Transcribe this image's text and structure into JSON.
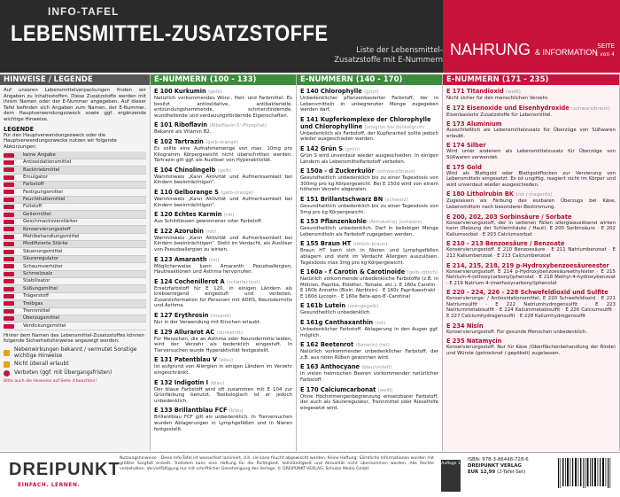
{
  "header": {
    "kicker": "INFO-TAFEL",
    "title": "LEBENSMITTEL-ZUSATZSTOFFE",
    "subtitle": "Liste der Lebensmittel-Zusatzstoffe mit E-Nummern",
    "series_title": "NAHRUNG",
    "series_suffix": "& INFORMATION",
    "page": "SEITE",
    "page_of": "1 von 4"
  },
  "legend_column": {
    "heading": "HINWEISE / LEGENDE",
    "intro": "Auf unseren Lebensmittelverpackungen finden wir Angaben zu Inhaltsstoffen. Diese Zusatzstoffe werden mit ihrem Namen oder der E-Nummer angegeben. Auf dieser Tafel befinden sich Angaben zum Namen, der E-Nummer, dem Hauptverwendungszweck sowie ggf. ergänzende wichtige Hinweise.",
    "legend_title": "LEGENDE",
    "legend_intro": "Für den Hauptverwendungszweck oder die Hauptverwendungszwecke nutzen wir folgende Abkürzungen:",
    "items": [
      "keine Angabe",
      "Antioxidationsmittel",
      "Backtriebmittel",
      "Emulgator",
      "Farbstoff",
      "Festigungsmittel",
      "Feuchthaltemittel",
      "Füllstoff",
      "Geliermittel",
      "Geschmacksverstärker",
      "Konservierungsstoff",
      "Mehlbehandlungsmittel",
      "Modifizierte Stärke",
      "Säuerungsmittel",
      "Säureregulator",
      "Schaumverhüter",
      "Schmelzsalz",
      "Stabilisator",
      "Süßungsmittel",
      "Trägerstoff",
      "Treibgas",
      "Trennmittel",
      "Überzugsmittel",
      "Verdickungsmittel"
    ],
    "outro": "Hinter dem Namen des Lebensmittel-Zusatzstoffes können folgende Sicherheitshinweise angezeigt werden:",
    "warnings": [
      "Nebenwirkungen bekannt / vermutet Sonstige wichtige Hinweise",
      "Nicht überall erlaubt",
      "Verboten (ggf. mit Übergangsfristen)"
    ],
    "footnote": "Bitte auch die Hinweise auf Seite 4 beachten!"
  },
  "columns": [
    {
      "heading": "E-NUMMERN (100 - 133)",
      "entries": [
        {
          "code": "E 100",
          "name": "Kurkumin",
          "tag": "(gelb)",
          "text": "Natürlich vorkommendes Würz-, Heil- und Farbmittel. Es besitzt antioxidative, antibakterielle, entzündungshemmende, schmerzlindernde, wundheilende und verdauungsfördernde Eigenschaften."
        },
        {
          "code": "E 101",
          "name": "Riboflavin",
          "tag": "(Riboflavin-5'-Phosphat)",
          "text": "Bekannt als Vitamin B2."
        },
        {
          "code": "E 102",
          "name": "Tartrazin",
          "tag": "(gelb-orange)",
          "text": "Es sollte eine Aufnahmemenge von max. 10mg pro Kilogramm Körpergewicht nicht überschritten werden. Tartrazin gilt ggf. als Auslöser von Hyperaktivität."
        },
        {
          "code": "E 104",
          "name": "Chinolingelb",
          "tag": "(gelb)",
          "text": "Warnhinweis „Kann Aktivität und Aufmerksamkeit bei Kindern beeinträchtigen\"."
        },
        {
          "code": "E 110",
          "name": "Gelborange S",
          "tag": "(gelb-orange)",
          "text": "Warnhinweis „Kann Aktivität und Aufmerksamkeit bei Kindern beeinträchtigen\"."
        },
        {
          "code": "E 120",
          "name": "Echtes Karmin",
          "tag": "(rot)",
          "text": "Aus Schildläusen gewonnener roter Farbstoff."
        },
        {
          "code": "E 122",
          "name": "Azorubin",
          "tag": "(rot)",
          "text": "Warnhinweis „Kann Aktivität und Aufmerksamkeit bei Kindern beeinträchtigen\". Steht im Verdacht, als Auslöser von Pseudoallergien zu wirken."
        },
        {
          "code": "E 123",
          "name": "Amaranth",
          "tag": "(rot)",
          "text": "Möglicherweise kann Amaranth Pseudoallergien, Hautreaktionen und Asthma hervorrufen."
        },
        {
          "code": "E 124",
          "name": "Cochenillerot A",
          "tag": "(scharlachrot)",
          "text": "Ersatzfarbstoff für E 120, in einigen Ländern als krebserregend eingestuft und verboten. Zusatzinformation für Personen mit ADHS, Neurodermitis und Asthma."
        },
        {
          "code": "E 127",
          "name": "Erythrosin",
          "tag": "(rosarot)",
          "text": "Nur in der Verwendung mit Kirschen erlaubt."
        },
        {
          "code": "E 129",
          "name": "Allurarot AC",
          "tag": "(dunkelrot)",
          "text": "Für Menschen, die an Asthma oder Neurodermitis leiden, wird der Verzehr als bedenklich eingestuft. In Tierversuchen wurde Hyperaktivität festgestellt."
        },
        {
          "code": "E 131",
          "name": "Patentblau V",
          "tag": "(blau)",
          "text": "Ist aufgrund von Allergien in einigen Ländern im Verzehr eingeschränkt."
        },
        {
          "code": "E 132",
          "name": "Indigotin I",
          "tag": "(blau)",
          "text": "Der blaue Farbstoff wird oft zusammen mit E 104 zur Grünfärbung benutzt. Toxikologisch ist er jedoch unbedenklich."
        },
        {
          "code": "E 133",
          "name": "Brillantblau FCF",
          "tag": "(blau)",
          "text": "Brillantblau FCF gilt als unbedenklich. In Tierversuchen wurden Ablagerungen in Lymphgefäßen und in Nieren festgestellt."
        }
      ]
    },
    {
      "heading": "E-NUMMERN (140 - 170)",
      "entries": [
        {
          "code": "E 140",
          "name": "Chlorophylle",
          "tag": "(grün)",
          "text": "Unbedenklicher pflanzenbasierter Farbstoff, der in Lebensmitteln in unbegrenzter Menge zugegeben werden darf."
        },
        {
          "code": "E 141",
          "name": "Kupferkomplexe der Chlorophylle und Chlorophylline",
          "tag": "(olivgrün bis dunkelgrün)",
          "text": "Unbedenklich als Farbstoff, der Kupferanteil sollte jedoch wieder ausgeschieden werden."
        },
        {
          "code": "E 142",
          "name": "Grün S",
          "tag": "(grün)",
          "text": "Grün S wird unverdaut wieder ausgeschieden. In einigen Ländern als Lebensmittelfarbstoff verboten."
        },
        {
          "code": "E 150a - d",
          "name": "Zuckerkulör",
          "tag": "(schwarz/braun)",
          "text": "Gesundheitlich unbedenklich bis zu einer Tagesdosis von 300mg pro kg Körpergewicht. Bei E 150d wird von einem höheren Verzehr abgeraten."
        },
        {
          "code": "E 151",
          "name": "Brillantschwarz BN",
          "tag": "(schwarz)",
          "text": "Gesundheitlich unbedenklich bis zu einer Tagesdosis von 5mg pro kg Körpergewicht."
        },
        {
          "code": "E 153",
          "name": "Pflanzenkohle",
          "tag": "(Aktivkohle) (schwarz)",
          "text": "Gesundheitlich unbedenklich. Darf in beliebiger Menge Lebensmitteln als Farbstoff zugegeben werden."
        },
        {
          "code": "E 155",
          "name": "Braun HT",
          "tag": "(rötlich-braun)",
          "text": "Braun HT kann sich in Nieren und Lymphgefäßen ablagern und steht im Verdacht Allergien auszulösen. Tagesdosis max 3mg pro kg Körpergewicht."
        },
        {
          "code": "E 160a - f",
          "name": "Carotin & Carotinoide",
          "tag": "(gelb-rötlich)",
          "text": "Natürlich vorkommende unbedenkliche Farbstoffe (z.B. in Möhren, Paprika, Eidotter, Tomate, etc.). E 160a Carotin · E 160b Annatto (Bixin, Norbixin) · E 160c Paprikaextrakt · E 160d Lycopin · E 160e Beta-apo-8'-Carotinal"
        },
        {
          "code": "E 161b",
          "name": "Lutein",
          "tag": "(orangegelb)",
          "text": "Gesundheitlich unbedenklich."
        },
        {
          "code": "E 161g",
          "name": "Canthaxanthin",
          "tag": "(rot)",
          "text": "Unbedenklicher Farbstoff. Ablagerung in den Augen ggf. möglich."
        },
        {
          "code": "E 162",
          "name": "Beetenrot",
          "tag": "(Betanin) (rot)",
          "text": "Natürlich vorkommender unbedenklicher Farbstoff, der z.B. aus roten Rüben gewonnen wird."
        },
        {
          "code": "E 163",
          "name": "Anthocyane",
          "tag": "(blau/violett)",
          "text": "In vielen heimischen Beeren vorkommender natürlicher Farbstoff."
        },
        {
          "code": "E 170",
          "name": "Calciumcarbonat",
          "tag": "(weiß)",
          "text": "Ohne Höchstmengenbegrenzung einsetzbarer Farbstoff, der auch als Säureregulator, Trennmittel oder Rieselhilfe eingesetzt wird."
        }
      ]
    },
    {
      "heading": "E-NUMMERN (171 - 235)",
      "entries": [
        {
          "code": "E 171",
          "name": "Titandioxid",
          "tag": "(weiß)",
          "text": "Nicht sicher für den menschlichen Verzehr."
        },
        {
          "code": "E 172",
          "name": "Eisenoxide und Eisenhydroxide",
          "tag": "(schwarz/braun)",
          "text": "Eisenbasierte Zusatzstoffe für Lebensmittel."
        },
        {
          "code": "E 173",
          "name": "Aluminium",
          "tag": "",
          "text": "Ausschließlich als Lebensmittelzusatz für Überzüge von Süßwaren erlaubt."
        },
        {
          "code": "E 174",
          "name": "Silber",
          "tag": "",
          "text": "Wird unter anderem als Lebensmittelzusatz für Überzüge von Süßwaren verwendet."
        },
        {
          "code": "E 175",
          "name": "Gold",
          "tag": "",
          "text": "Wird als Blattgold oder Blattgoldflocken zur Verzierung von Lebensmitteln eingesetzt. Es ist ungiftig, reagiert nicht im Körper und wird unverdaut wieder ausgeschieden."
        },
        {
          "code": "E 180",
          "name": "Litholrubin BK",
          "tag": "(rot / magenta)",
          "text": "Zugelassen als Färbung des essbaren Überzugs bei Käse, Lebensmitteln nach besonderer Bestimmung."
        },
        {
          "code": "E 200, 202, 203",
          "name": "Sorbinsäure / Sorbate",
          "tag": "",
          "text": "Konservierungsstoff, der in seltenen Fällen allergieauslösend wirken kann (Reizung der Schleimhäute / Haut). E 200 Sorbinsäure · E 202 Kaliumsorbat · E 203 Calciumsorbat"
        },
        {
          "code": "E 210 - 213",
          "name": "Benzoesäure / Benzoate",
          "tag": "",
          "text": "Konservierungsstoff. E 210 Benzoesäure · E 211 Natriumbenzoat · E 212 Kaliumbenzoat · E 213 Calciumbenzoat"
        },
        {
          "code": "E 214, 215, 218, 219",
          "name": "p-Hydroxybenzoesäureester",
          "tag": "",
          "text": "Konservierungsstoff. E 214 p-Hydroxybenzoesäureethylester · E 215 Natrium-4-(ethoxycarbonyl)phenolat · E 218 Methyl-4-hydroxybenzoat · E 219 Natrium-4-(methoxycarbonyl)phenolat"
        },
        {
          "code": "E 220 - 224, 226 - 228",
          "name": "Schwefeldioxid und Sulfite",
          "tag": "",
          "text": "Konservierungs- / Antioxidationsmittel. E 220 Schwefeldioxid · E 221 Natriumsulfit · E 222 Natriumhydrogensulfit · E 223 Natriummetabisulfit · E 224 Kaliummetabisulfit · E 226 Calciumsulfit · E 227 Calciumhydrogensulfit · E 228 Kaliumhydrogensulfit"
        },
        {
          "code": "E 234",
          "name": "Nisin",
          "tag": "",
          "text": "Konservierungsstoff. Für gesunde Menschen unbedenklich."
        },
        {
          "code": "E 235",
          "name": "Natamycin",
          "tag": "",
          "text": "Konservierungsstoff. Nur für Käse (Oberflächenbehandlung der Rinde) und Würste (getrocknet / gepökelt) zugelassen."
        }
      ]
    }
  ],
  "footer": {
    "brand": "DREIPUNKT",
    "slogan": "EINFACH. LERNEN.",
    "notes": "Nutzungshinweise - Diese Info-Tafel ist wasserfest laminiert, d.h. sie kann feucht abgewischt werden. Keine Haftung: Sämtliche Informationen wurden mit größter Sorgfalt erstellt. Trotzdem kann eine Haftung für die Richtigkeit, Vollständigkeit und Aktualität nicht übernommen werden. Alle Rechte vorbehalten. Vervielfältigung nur mit schriftlicher Genehmigung des Verlags. © DREIPUNKT-VERLAG, Schulze Media GmbH",
    "edition": "Auflage 1",
    "isbn": "ISBN: 978-3-86448-728-6",
    "publisher": "DREIPUNKT VERLAG",
    "price": "EUR 12,99",
    "price_note": "(2-Tafel-Set)"
  }
}
